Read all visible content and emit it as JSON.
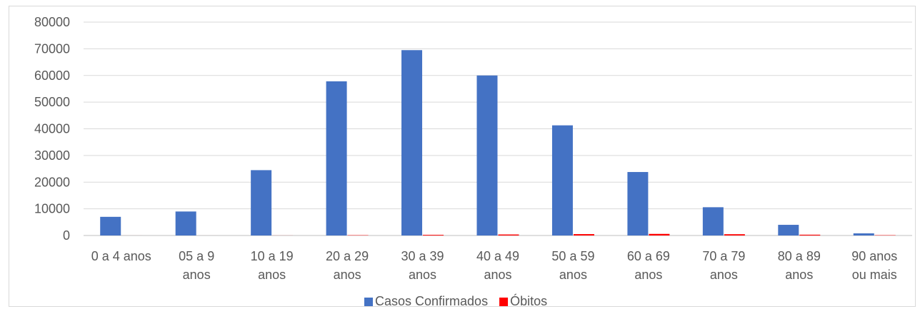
{
  "chart_data": {
    "type": "bar",
    "title": "",
    "xlabel": "",
    "ylabel": "",
    "ylim": [
      0,
      80000
    ],
    "yticks": [
      0,
      10000,
      20000,
      30000,
      40000,
      50000,
      60000,
      70000,
      80000
    ],
    "grid": true,
    "legend_position": "bottom",
    "categories": [
      [
        "0 a 4 anos"
      ],
      [
        "05 a 9",
        "anos"
      ],
      [
        "10 a 19",
        "anos"
      ],
      [
        "20 a 29",
        "anos"
      ],
      [
        "30 a 39",
        "anos"
      ],
      [
        "40 a 49",
        "anos"
      ],
      [
        "50 a 59",
        "anos"
      ],
      [
        "60 a 69",
        "anos"
      ],
      [
        "70 a 79",
        "anos"
      ],
      [
        "80 a 89",
        "anos"
      ],
      [
        "90 anos",
        "ou mais"
      ]
    ],
    "series": [
      {
        "name": "Casos Confirmados",
        "color": "#4472c4",
        "values": [
          7000,
          9000,
          24500,
          57800,
          69500,
          60000,
          41300,
          23800,
          10600,
          4000,
          800
        ]
      },
      {
        "name": "Óbitos",
        "color": "#ff0000",
        "values": [
          5,
          3,
          20,
          120,
          250,
          380,
          520,
          600,
          480,
          300,
          120
        ]
      }
    ]
  }
}
